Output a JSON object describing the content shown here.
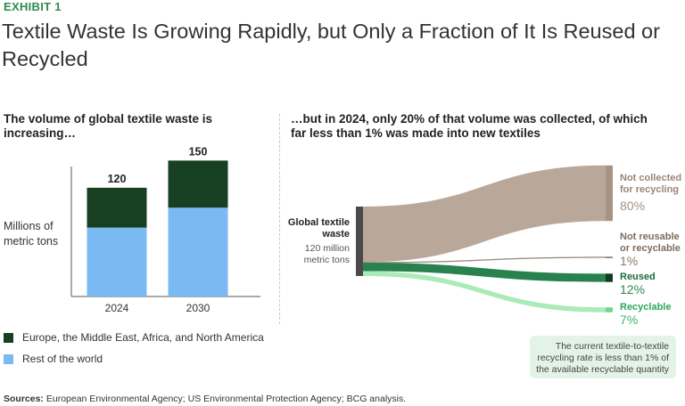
{
  "exhibit_label": "EXHIBIT 1",
  "title": "Textile Waste Is Growing Rapidly, but Only a Fraction of It Is Reused or Recycled",
  "left_subtitle": "The volume of global textile waste is increasing…",
  "right_subtitle": "…but in 2024, only 20% of that volume was collected, of which far less than 1% was made into new textiles",
  "y_unit_label": "Millions of metric tons",
  "legend": [
    {
      "label": "Europe, the Middle East, Africa, and North America",
      "color": "#173f22"
    },
    {
      "label": "Rest of the world",
      "color": "#7ab9f1"
    }
  ],
  "source_label": "Sources:",
  "source_text": " European Environmental Agency; US Environmental Protection Agency; BCG analysis.",
  "callout": "The current textile-to-textile recycling rate is less than 1% of the available recyclable quantity",
  "chart_data": [
    {
      "type": "bar",
      "stacked": true,
      "categories": [
        "2024",
        "2030"
      ],
      "series": [
        {
          "name": "Rest of the world",
          "values": [
            76,
            98
          ],
          "color": "#7ab9f1"
        },
        {
          "name": "Europe, the Middle East, Africa, and North America",
          "values": [
            44,
            52
          ],
          "color": "#173f22"
        }
      ],
      "totals": [
        "120",
        "150"
      ],
      "ylabel": "Millions of metric tons",
      "ylim": [
        0,
        170
      ]
    },
    {
      "type": "sankey",
      "source": {
        "label": "Global textile waste",
        "sublabel": "120 million metric tons",
        "color": "#4a4a4a"
      },
      "flows": [
        {
          "label": "Not collected for recycling",
          "value_label": "80%",
          "value": 80,
          "color": "#b5a394",
          "label_color": "#9a8577",
          "value_color": "#a39183"
        },
        {
          "label": "Not reusable or recyclable",
          "value_label": "1%",
          "value": 1,
          "color": "#8f7e70",
          "label_color": "#7d6b5c",
          "value_color": "#8c7b6c"
        },
        {
          "label": "Reused",
          "value_label": "12%",
          "value": 12,
          "color": "#1e7a44",
          "label_color": "#1b6b3b",
          "value_color": "#2a8a4d"
        },
        {
          "label": "Recyclable",
          "value_label": "7%",
          "value": 7,
          "color": "#a6e9b5",
          "label_color": "#2ba660",
          "value_color": "#3fb46e"
        }
      ]
    }
  ]
}
